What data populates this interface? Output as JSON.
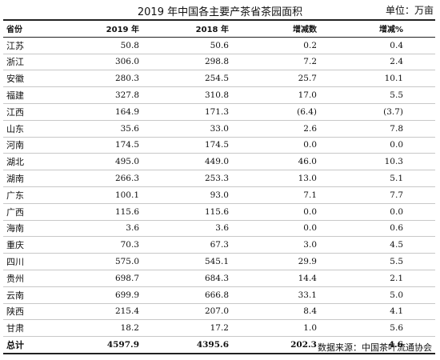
{
  "title": "2019 年中国各主要产茶省茶园面积",
  "unit": "单位：万亩",
  "headers": [
    "省份",
    "2019 年",
    "2018 年",
    "增减数",
    "增减%"
  ],
  "rows": [
    [
      "江苏",
      "50.8",
      "50.6",
      "0.2",
      "0.4"
    ],
    [
      "浙江",
      "306.0",
      "298.8",
      "7.2",
      "2.4"
    ],
    [
      "安徽",
      "280.3",
      "254.5",
      "25.7",
      "10.1"
    ],
    [
      "福建",
      "327.8",
      "310.8",
      "17.0",
      "5.5"
    ],
    [
      "江西",
      "164.9",
      "171.3",
      "(6.4)",
      "(3.7)"
    ],
    [
      "山东",
      "35.6",
      "33.0",
      "2.6",
      "7.8"
    ],
    [
      "河南",
      "174.5",
      "174.5",
      "0.0",
      "0.0"
    ],
    [
      "湖北",
      "495.0",
      "449.0",
      "46.0",
      "10.3"
    ],
    [
      "湖南",
      "266.3",
      "253.3",
      "13.0",
      "5.1"
    ],
    [
      "广东",
      "100.1",
      "93.0",
      "7.1",
      "7.7"
    ],
    [
      "广西",
      "115.6",
      "115.6",
      "0.0",
      "0.0"
    ],
    [
      "海南",
      "3.6",
      "3.6",
      "0.0",
      "0.6"
    ],
    [
      "重庆",
      "70.3",
      "67.3",
      "3.0",
      "4.5"
    ],
    [
      "四川",
      "575.0",
      "545.1",
      "29.9",
      "5.5"
    ],
    [
      "贵州",
      "698.7",
      "684.3",
      "14.4",
      "2.1"
    ],
    [
      "云南",
      "699.9",
      "666.8",
      "33.1",
      "5.0"
    ],
    [
      "陕西",
      "215.4",
      "207.0",
      "8.4",
      "4.1"
    ],
    [
      "甘肃",
      "18.2",
      "17.2",
      "1.0",
      "5.6"
    ]
  ],
  "total": [
    "总计",
    "4597.9",
    "4395.6",
    "202.3",
    "4.6"
  ],
  "source": "数据来源：中国茶叶流通协会"
}
